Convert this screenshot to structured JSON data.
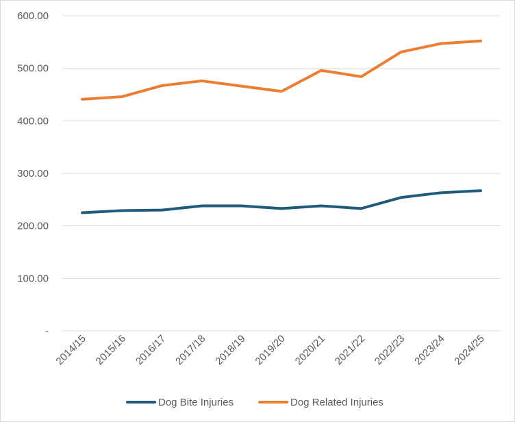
{
  "chart_data": {
    "type": "line",
    "title": "",
    "xlabel": "",
    "ylabel": "",
    "categories": [
      "2014/15",
      "2015/16",
      "2016/17",
      "2017/18",
      "2018/19",
      "2019/20",
      "2020/21",
      "2021/22",
      "2022/23",
      "2023/24",
      "2024/25"
    ],
    "ylim": [
      0,
      600
    ],
    "yticks": [
      0,
      100,
      200,
      300,
      400,
      500,
      600
    ],
    "ytick_labels": [
      "-",
      "100.00",
      "200.00",
      "300.00",
      "400.00",
      "500.00",
      "600.00"
    ],
    "grid": true,
    "legend_position": "bottom",
    "series": [
      {
        "name": "Dog Bite Injuries",
        "color": "#1f5c7a",
        "values": [
          225,
          229,
          230,
          238,
          238,
          233,
          238,
          233,
          254,
          263,
          267
        ]
      },
      {
        "name": "Dog Related Injuries",
        "color": "#ed7d31",
        "values": [
          441,
          446,
          467,
          476,
          466,
          456,
          496,
          484,
          531,
          547,
          552
        ]
      }
    ]
  }
}
